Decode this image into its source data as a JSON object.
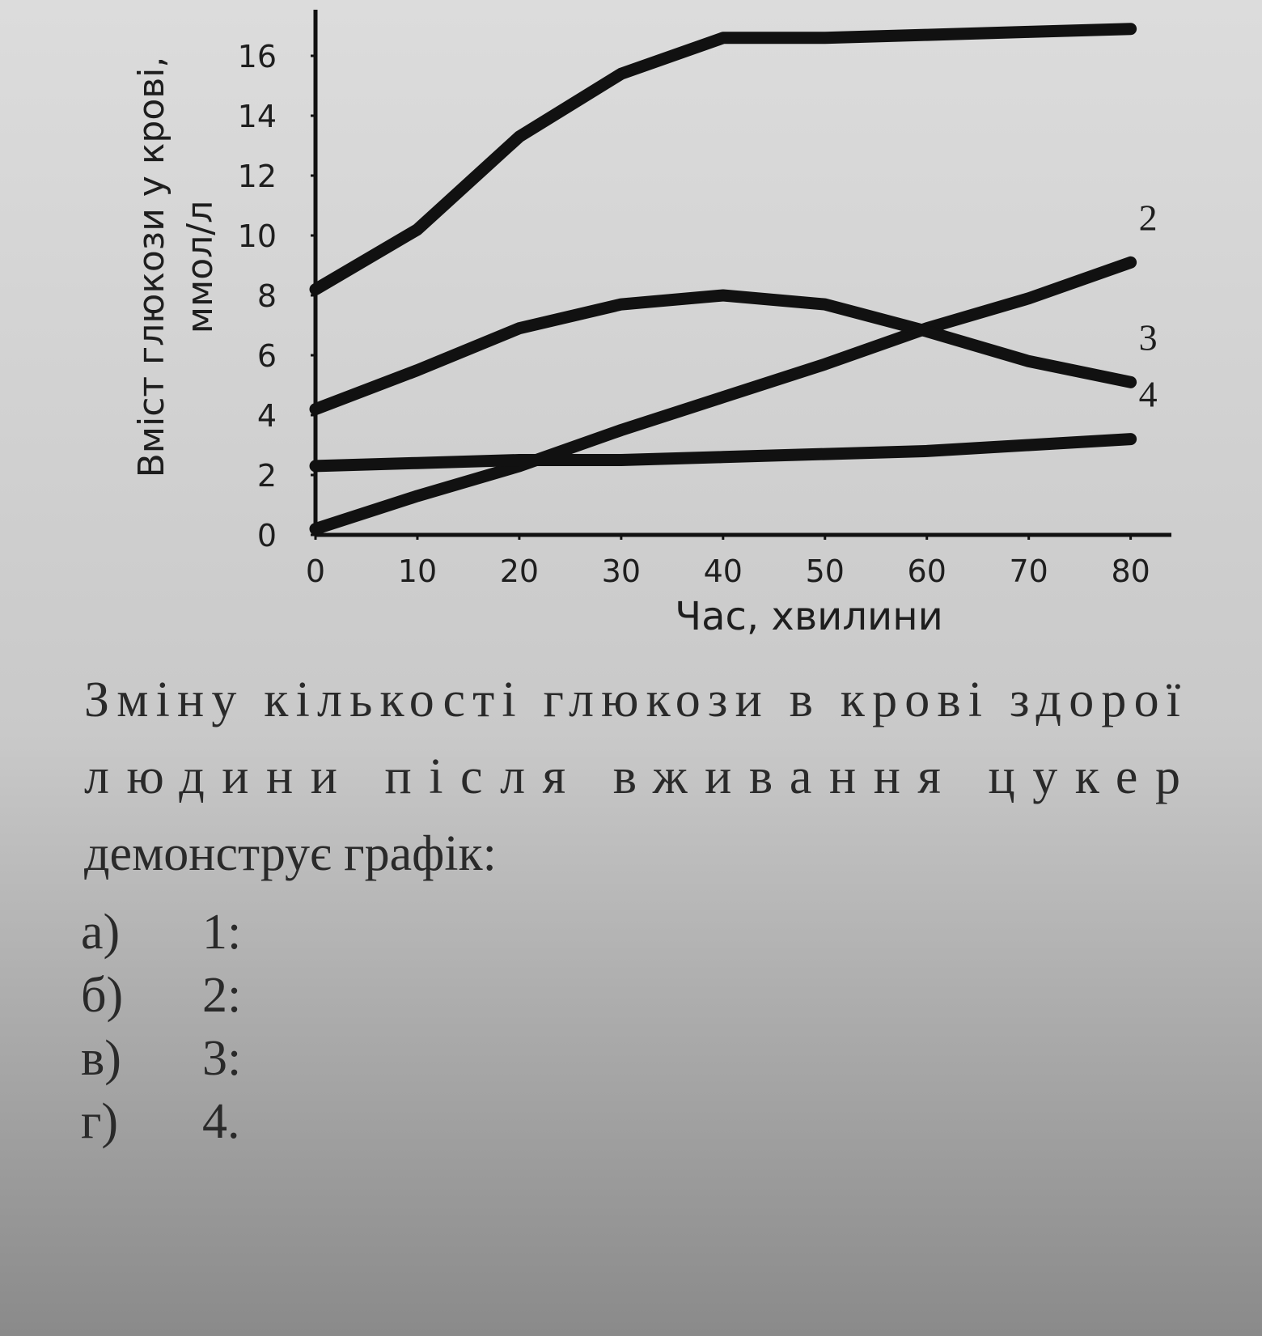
{
  "chart_data": {
    "type": "line",
    "ylabel_lines": [
      "Вміст глюкози у крові,",
      "ммол/л"
    ],
    "xlabel": "Час, хвилини",
    "x": [
      0,
      10,
      20,
      30,
      40,
      50,
      60,
      70,
      80
    ],
    "series": [
      {
        "name": "1",
        "color": "#111111",
        "values": [
          8.2,
          10.2,
          13.3,
          15.4,
          16.6,
          16.6,
          16.7,
          16.8,
          16.9
        ]
      },
      {
        "name": "2",
        "color": "#111111",
        "values": [
          0.2,
          1.3,
          2.3,
          3.5,
          4.6,
          5.7,
          6.9,
          7.9,
          9.1
        ]
      },
      {
        "name": "3",
        "color": "#111111",
        "values": [
          4.2,
          5.5,
          6.9,
          7.7,
          8.0,
          7.7,
          6.8,
          5.8,
          5.1
        ]
      },
      {
        "name": "4",
        "color": "#111111",
        "values": [
          2.3,
          2.4,
          2.5,
          2.5,
          2.6,
          2.7,
          2.8,
          3.0,
          3.2
        ]
      }
    ],
    "xlim": [
      0,
      84
    ],
    "ylim": [
      0,
      17
    ],
    "xticks": [
      0,
      10,
      20,
      30,
      40,
      50,
      60,
      70,
      80
    ],
    "yticks": [
      0,
      2,
      4,
      6,
      8,
      10,
      12,
      14,
      16
    ]
  },
  "question": {
    "lines": [
      "Зміну кількості глюкози в крові здорої",
      "людини після вживання цукер",
      "демонструє графік:"
    ],
    "options": [
      [
        "а)",
        "1:"
      ],
      [
        "б)",
        "2:"
      ],
      [
        "в)",
        "3:"
      ],
      [
        "г)",
        "4."
      ]
    ]
  }
}
